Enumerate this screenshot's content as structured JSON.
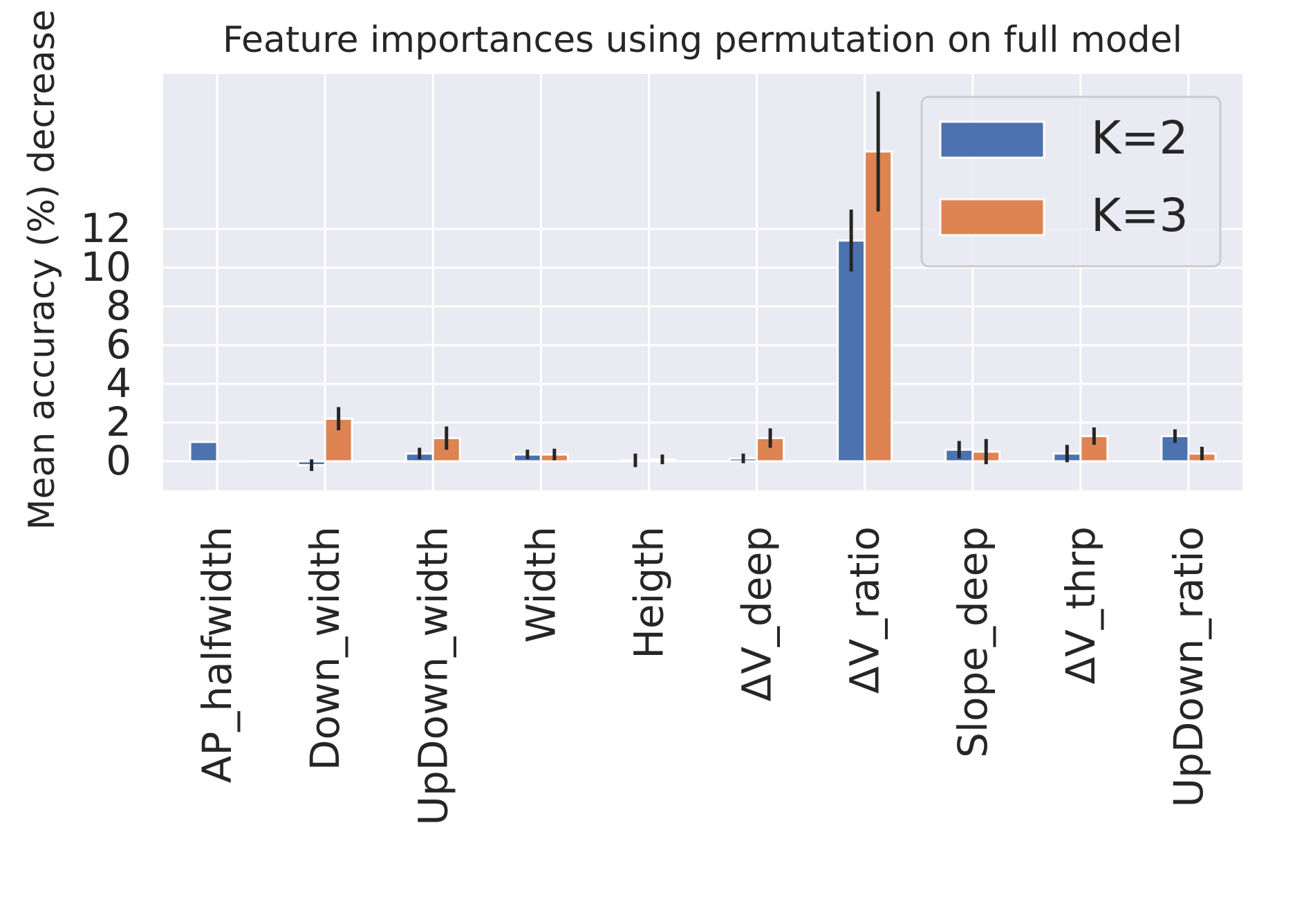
{
  "chart_data": {
    "type": "bar",
    "title": "Feature importances using permutation on full model",
    "ylabel": "Mean accuracy (%) decrease",
    "xlabel": "",
    "categories": [
      "AP_halfwidth",
      "Down_width",
      "UpDown_width",
      "Width",
      "Heigth",
      "ΔV_deep",
      "ΔV_ratio",
      "Slope_deep",
      "ΔV_thrp",
      "UpDown_ratio"
    ],
    "series": [
      {
        "name": "K=2",
        "color": "#4C72B0",
        "values": [
          1.0,
          -0.2,
          0.4,
          0.35,
          0.05,
          0.15,
          11.4,
          0.6,
          0.4,
          1.3
        ],
        "errors": [
          null,
          0.3,
          0.3,
          0.25,
          0.35,
          0.25,
          1.6,
          0.45,
          0.45,
          0.35
        ]
      },
      {
        "name": "K=3",
        "color": "#DD8452",
        "values": [
          0.0,
          2.2,
          1.2,
          0.35,
          0.1,
          1.2,
          16.0,
          0.5,
          1.3,
          0.4
        ],
        "errors": [
          null,
          0.6,
          0.6,
          0.3,
          0.25,
          0.5,
          3.1,
          0.65,
          0.45,
          0.35
        ]
      }
    ],
    "yticks": [
      0,
      2,
      4,
      6,
      8,
      10,
      12
    ],
    "ylim": [
      -1.5,
      20
    ],
    "grid": true,
    "legend_position": "top-right",
    "background_color": "#EAEAF2",
    "grid_color": "#FFFFFF",
    "error_bar_color": "#262626"
  }
}
